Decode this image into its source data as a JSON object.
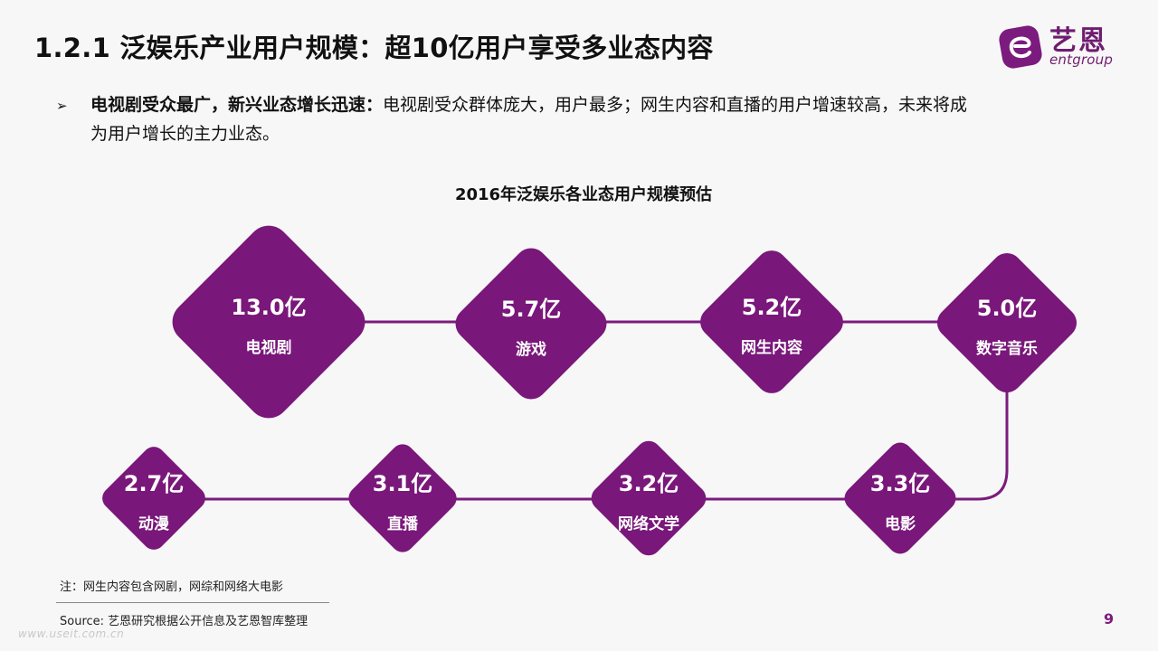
{
  "title": "1.2.1 泛娱乐产业用户规模：超10亿用户享受多业态内容",
  "logo": {
    "name": "艺恩",
    "sub": "entgroup",
    "icon": "entgroup-e-logo-icon"
  },
  "bullet": {
    "marker": "➢",
    "bold": "电视剧受众最广，新兴业态增长迅速：",
    "line1_rest": "电视剧受众群体庞大，用户最多；网生内容和直播的用户增速较高，未来将成",
    "line2": "为用户增长的主力业态。"
  },
  "diagram_title": "2016年泛娱乐各业态用户规模预估",
  "colors": {
    "accent": "#79177a",
    "connector": "#7b1b7e",
    "text": "#111111"
  },
  "nodes": [
    {
      "value": "13.0亿",
      "name": "电视剧"
    },
    {
      "value": "5.7亿",
      "name": "游戏"
    },
    {
      "value": "5.2亿",
      "name": "网生内容"
    },
    {
      "value": "5.0亿",
      "name": "数字音乐"
    },
    {
      "value": "3.3亿",
      "name": "电影"
    },
    {
      "value": "3.2亿",
      "name": "网络文学"
    },
    {
      "value": "3.1亿",
      "name": "直播"
    },
    {
      "value": "2.7亿",
      "name": "动漫"
    }
  ],
  "note": "注：网生内容包含网剧，网综和网络大电影",
  "source": "Source: 艺恩研究根据公开信息及艺恩智库整理",
  "page_number": "9",
  "watermark": "www.useit.com.cn"
}
